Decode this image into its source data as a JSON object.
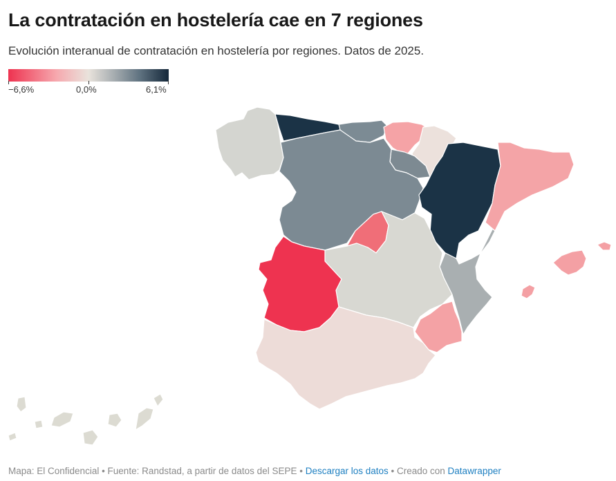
{
  "title": "La contratación en hostelería cae en 7 regiones",
  "subtitle": "Evolución interanual de contratación en hostelería por regiones. Datos de 2025.",
  "legend": {
    "min_label": "−6,6%",
    "mid_label": "0,0%",
    "max_label": "6,1%",
    "colors": [
      "#ee3350",
      "#f6a8ae",
      "#e9e3dc",
      "#aab0b3",
      "#5f7280",
      "#15283a"
    ]
  },
  "regions": [
    {
      "id": "galicia",
      "name": "Galicia",
      "color": "#d4d5d0"
    },
    {
      "id": "asturias",
      "name": "Asturias",
      "color": "#1b3346"
    },
    {
      "id": "cantabria",
      "name": "Cantabria",
      "color": "#7c8b94"
    },
    {
      "id": "pais-vasco",
      "name": "País Vasco",
      "color": "#f5a3a6"
    },
    {
      "id": "navarra",
      "name": "Navarra",
      "color": "#ece1dc"
    },
    {
      "id": "la-rioja",
      "name": "La Rioja",
      "color": "#7d8a92"
    },
    {
      "id": "aragon",
      "name": "Aragón",
      "color": "#1b3346"
    },
    {
      "id": "cataluna",
      "name": "Cataluña",
      "color": "#f4a4a7"
    },
    {
      "id": "castilla-leon",
      "name": "Castilla y León",
      "color": "#7c8a93"
    },
    {
      "id": "madrid",
      "name": "Madrid",
      "color": "#f06e78"
    },
    {
      "id": "castilla-la-mancha",
      "name": "Castilla-La Mancha",
      "color": "#d8d8d2"
    },
    {
      "id": "valencia",
      "name": "Comunidad Valenciana",
      "color": "#a9afb1"
    },
    {
      "id": "extremadura",
      "name": "Extremadura",
      "color": "#ee3350"
    },
    {
      "id": "murcia",
      "name": "Murcia",
      "color": "#f4a2a5"
    },
    {
      "id": "andalucia",
      "name": "Andalucía",
      "color": "#eddcd8"
    },
    {
      "id": "baleares",
      "name": "Islas Baleares",
      "color": "#f4a0a4"
    },
    {
      "id": "canarias",
      "name": "Canarias",
      "color": "#dcdbd2"
    }
  ],
  "footer": {
    "map_credit": "Mapa: El Confidencial • Fuente: Randstad, a partir de datos del SEPE • ",
    "download_label": "Descargar los datos",
    "created_with": " • Creado con ",
    "tool_label": "Datawrapper"
  }
}
